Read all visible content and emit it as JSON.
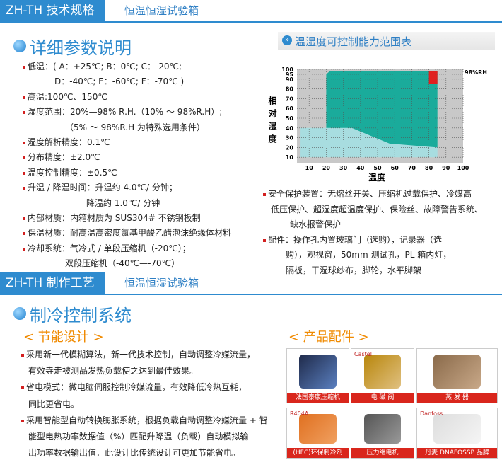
{
  "section1": {
    "tab": "ZH-TH 技术规格",
    "subtitle": "恒温恒湿试验箱",
    "heading": "详细参数说明",
    "specs": [
      {
        "lines": [
          "低温：( A：+25℃; B：0℃; C：-20℃;",
          "D：-40℃; E：-60℃; F：-70℃ )"
        ]
      },
      {
        "lines": [
          "高温:100℃、150℃"
        ]
      },
      {
        "lines": [
          "湿度范围：20%—98% R.H.（10% ～ 98%R.H）;",
          "（5% ～ 98%R.H 为特殊选用条件）"
        ]
      },
      {
        "lines": [
          "湿度解析精度：0.1℃"
        ]
      },
      {
        "lines": [
          "分布精度：±2.0℃"
        ]
      },
      {
        "lines": [
          "温度控制精度：±0.5℃"
        ]
      },
      {
        "lines": [
          "升温 / 降温时间：升温约 4.0℃/ 分钟；",
          "降温约 1.0℃/ 分钟"
        ]
      },
      {
        "lines": [
          "内部材质：内箱材质为 SUS304# 不锈钢板制"
        ]
      },
      {
        "lines": [
          "保温材质：耐高温高密度氯基甲酸乙醋泡沫绝缘体材料"
        ]
      },
      {
        "lines": [
          "冷却系统：气冷式 / 单段压缩机（-20℃）；",
          "双段压缩机（-40℃—-70℃）"
        ]
      }
    ],
    "chart": {
      "title": "温湿度可控制能力范围表",
      "y_label": "相对湿度",
      "x_label": "温度",
      "annotation": "98%RH",
      "xlim": [
        0,
        100
      ],
      "ylim": [
        0,
        100
      ],
      "xticks": [
        10,
        20,
        30,
        40,
        50,
        60,
        70,
        80,
        90,
        100
      ],
      "yticks": [
        10,
        20,
        30,
        40,
        50,
        60,
        70,
        80,
        90,
        95,
        100
      ],
      "regions": [
        {
          "color": "#1aab9b",
          "x": [
            20,
            22,
            85,
            85,
            20
          ],
          "y": [
            95,
            98,
            98,
            20,
            20
          ]
        },
        {
          "color": "#a8dde0",
          "x": [
            5,
            5,
            35,
            57,
            85,
            85
          ],
          "y": [
            10,
            40,
            40,
            24,
            20,
            10
          ]
        },
        {
          "color": "#e02020",
          "x": [
            80,
            85,
            85,
            80
          ],
          "y": [
            85,
            85,
            98,
            98
          ]
        }
      ]
    },
    "safety": [
      {
        "lines": [
          "安全保护装置：无熔丝开关、压缩机过载保护、冷媒高",
          "低压保护、超湿度超温度保护、保险丝、故障警告系统、",
          "缺水报警保护"
        ]
      },
      {
        "lines": [
          "配件：操作孔内置玻璃门（选购），记录器（选",
          "购），观视窗，50mm 测试孔，PL 箱内灯，",
          "隔板，干湿球纱布，脚轮，水平脚架"
        ]
      }
    ]
  },
  "section2": {
    "tab": "ZH-TH 制作工艺",
    "subtitle": "恒温恒湿试验箱",
    "heading": "制冷控制系统",
    "left_title": "< 节能设计 >",
    "right_title": "< 产品配件 >",
    "items": [
      {
        "lines": [
          "采用新一代模糊算法，新一代技术控制，自动调整冷媒流量，",
          "有效寺走被测品发热负载使之达到最佳效果。"
        ]
      },
      {
        "lines": [
          "省电模式：微电脑伺服控制冷媒流量，有效降低冷热互耗，",
          "同比更省电。"
        ]
      },
      {
        "lines": [
          "采用智能型自动转换膨胀系统，根据负载自动调整冷媒流量 + 智",
          "能型电热功率数据值（%）匹配升降温（负载）自动模拟输",
          "出功率数据输出值．此设计比传统设计可更加节能省电。"
        ]
      }
    ],
    "parts": [
      {
        "caption": "法国泰康压缩机"
      },
      {
        "caption": "电 磁 阀",
        "brand": "Castel"
      },
      {
        "caption": "蒸 发 器"
      },
      {
        "caption": "(HFC)环保制冷剂",
        "brand": "R404A"
      },
      {
        "caption": "压力继电机"
      },
      {
        "caption": "丹麦 DNAFOSSP 品牌",
        "brand": "Danfoss"
      }
    ]
  }
}
